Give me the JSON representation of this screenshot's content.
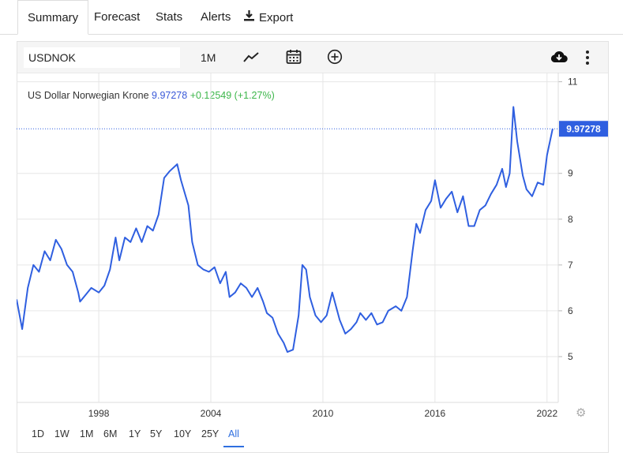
{
  "nav": {
    "tabs": [
      "Summary",
      "Forecast",
      "Stats",
      "Alerts",
      "Export"
    ],
    "active": "Summary"
  },
  "toolbar": {
    "symbol": "USDNOK",
    "interval": "1M",
    "icons": [
      "line-chart-icon",
      "calendar-icon",
      "plus-circle-icon",
      "cloud-download-icon",
      "more-vertical-icon"
    ]
  },
  "legend": {
    "name": "US Dollar Norwegian Krone",
    "price": "9.97278",
    "change": "+0.12549",
    "change_pct": "(+1.27%)"
  },
  "price_label": "9.97278",
  "ranges": [
    "1D",
    "1W",
    "1M",
    "6M",
    "1Y",
    "5Y",
    "10Y",
    "25Y",
    "All"
  ],
  "active_range": "All",
  "colors": {
    "line": "#2f5fe0",
    "up": "#3cb64a",
    "grid": "#e6e6e6"
  },
  "chart_data": {
    "type": "line",
    "title": "US Dollar Norwegian Krone",
    "xlabel": "",
    "ylabel": "",
    "xlim": [
      1993.6,
      2022.6
    ],
    "ylim": [
      4.0,
      11.2
    ],
    "x_ticks": [
      "1998",
      "2004",
      "2010",
      "2016",
      "2022"
    ],
    "y_ticks": [
      "5",
      "6",
      "7",
      "8",
      "9",
      "11"
    ],
    "grid": true,
    "last_value": 9.97278,
    "series": [
      {
        "values": [
          [
            1993.6,
            6.25
          ],
          [
            1993.9,
            5.6
          ],
          [
            1994.2,
            6.5
          ],
          [
            1994.5,
            7.0
          ],
          [
            1994.8,
            6.85
          ],
          [
            1995.1,
            7.3
          ],
          [
            1995.4,
            7.1
          ],
          [
            1995.7,
            7.55
          ],
          [
            1996.0,
            7.35
          ],
          [
            1996.3,
            7.0
          ],
          [
            1996.6,
            6.85
          ],
          [
            1996.9,
            6.4
          ],
          [
            1997.0,
            6.2
          ],
          [
            1997.3,
            6.35
          ],
          [
            1997.6,
            6.5
          ],
          [
            1998.0,
            6.4
          ],
          [
            1998.3,
            6.55
          ],
          [
            1998.6,
            6.9
          ],
          [
            1998.9,
            7.6
          ],
          [
            1999.1,
            7.1
          ],
          [
            1999.4,
            7.6
          ],
          [
            1999.7,
            7.5
          ],
          [
            2000.0,
            7.8
          ],
          [
            2000.3,
            7.5
          ],
          [
            2000.6,
            7.85
          ],
          [
            2000.9,
            7.75
          ],
          [
            2001.2,
            8.1
          ],
          [
            2001.5,
            8.9
          ],
          [
            2001.8,
            9.05
          ],
          [
            2002.2,
            9.2
          ],
          [
            2002.4,
            8.85
          ],
          [
            2002.8,
            8.3
          ],
          [
            2003.0,
            7.5
          ],
          [
            2003.3,
            7.0
          ],
          [
            2003.6,
            6.9
          ],
          [
            2003.9,
            6.85
          ],
          [
            2004.2,
            6.95
          ],
          [
            2004.5,
            6.6
          ],
          [
            2004.8,
            6.85
          ],
          [
            2005.0,
            6.3
          ],
          [
            2005.3,
            6.4
          ],
          [
            2005.6,
            6.6
          ],
          [
            2005.9,
            6.5
          ],
          [
            2006.2,
            6.3
          ],
          [
            2006.5,
            6.5
          ],
          [
            2006.8,
            6.2
          ],
          [
            2007.0,
            5.95
          ],
          [
            2007.3,
            5.85
          ],
          [
            2007.6,
            5.5
          ],
          [
            2007.9,
            5.3
          ],
          [
            2008.1,
            5.1
          ],
          [
            2008.4,
            5.15
          ],
          [
            2008.7,
            5.9
          ],
          [
            2008.9,
            7.0
          ],
          [
            2009.1,
            6.9
          ],
          [
            2009.3,
            6.3
          ],
          [
            2009.6,
            5.9
          ],
          [
            2009.9,
            5.75
          ],
          [
            2010.2,
            5.9
          ],
          [
            2010.5,
            6.4
          ],
          [
            2010.7,
            6.1
          ],
          [
            2010.9,
            5.8
          ],
          [
            2011.2,
            5.5
          ],
          [
            2011.5,
            5.6
          ],
          [
            2011.8,
            5.75
          ],
          [
            2012.0,
            5.95
          ],
          [
            2012.3,
            5.8
          ],
          [
            2012.6,
            5.95
          ],
          [
            2012.9,
            5.7
          ],
          [
            2013.2,
            5.75
          ],
          [
            2013.5,
            6.0
          ],
          [
            2013.9,
            6.1
          ],
          [
            2014.2,
            6.0
          ],
          [
            2014.5,
            6.3
          ],
          [
            2014.8,
            7.3
          ],
          [
            2015.0,
            7.9
          ],
          [
            2015.2,
            7.7
          ],
          [
            2015.5,
            8.2
          ],
          [
            2015.8,
            8.4
          ],
          [
            2016.0,
            8.85
          ],
          [
            2016.3,
            8.25
          ],
          [
            2016.6,
            8.45
          ],
          [
            2016.9,
            8.6
          ],
          [
            2017.2,
            8.15
          ],
          [
            2017.5,
            8.5
          ],
          [
            2017.8,
            7.85
          ],
          [
            2018.1,
            7.85
          ],
          [
            2018.4,
            8.2
          ],
          [
            2018.7,
            8.3
          ],
          [
            2019.0,
            8.55
          ],
          [
            2019.3,
            8.75
          ],
          [
            2019.6,
            9.1
          ],
          [
            2019.8,
            8.7
          ],
          [
            2020.0,
            9.0
          ],
          [
            2020.2,
            10.45
          ],
          [
            2020.4,
            9.7
          ],
          [
            2020.7,
            8.95
          ],
          [
            2020.9,
            8.65
          ],
          [
            2021.2,
            8.5
          ],
          [
            2021.5,
            8.8
          ],
          [
            2021.8,
            8.75
          ],
          [
            2022.0,
            9.4
          ],
          [
            2022.3,
            9.97278
          ]
        ]
      }
    ]
  }
}
